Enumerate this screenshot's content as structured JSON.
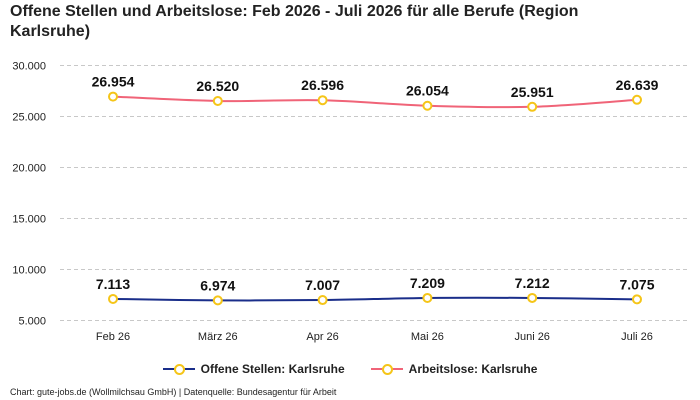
{
  "title": "Offene Stellen und Arbeitslose: Feb 2026 - Juli 2026 für alle Berufe (Region Karlsruhe)",
  "credit": "Chart: gute-jobs.de (Wollmilchsau GmbH) | Datenquelle: Bundesagentur für Arbeit",
  "chart_data": {
    "type": "line",
    "title": "Offene Stellen und Arbeitslose: Feb 2026 - Juli 2026 für alle Berufe (Region Karlsruhe)",
    "categories": [
      "Feb 26",
      "März 26",
      "Apr 26",
      "Mai 26",
      "Juni 26",
      "Juli 26"
    ],
    "ylim": [
      4000,
      31000
    ],
    "yticks": [
      5000,
      10000,
      15000,
      20000,
      25000,
      30000
    ],
    "ytick_labels": [
      "5.000",
      "10.000",
      "15.000",
      "20.000",
      "25.000",
      "30.000"
    ],
    "grid": true,
    "legend_position": "bottom",
    "series": [
      {
        "name": "Offene Stellen: Karlsruhe",
        "color": "#1a2e8a",
        "values": [
          7113,
          6974,
          7007,
          7209,
          7212,
          7075
        ],
        "labels": [
          "7.113",
          "6.974",
          "7.007",
          "7.209",
          "7.212",
          "7.075"
        ]
      },
      {
        "name": "Arbeitslose: Karlsruhe",
        "color": "#f06478",
        "values": [
          26954,
          26520,
          26596,
          26054,
          25951,
          26639
        ],
        "labels": [
          "26.954",
          "26.520",
          "26.596",
          "26.054",
          "25.951",
          "26.639"
        ]
      }
    ],
    "marker_color": "#f5c518"
  }
}
